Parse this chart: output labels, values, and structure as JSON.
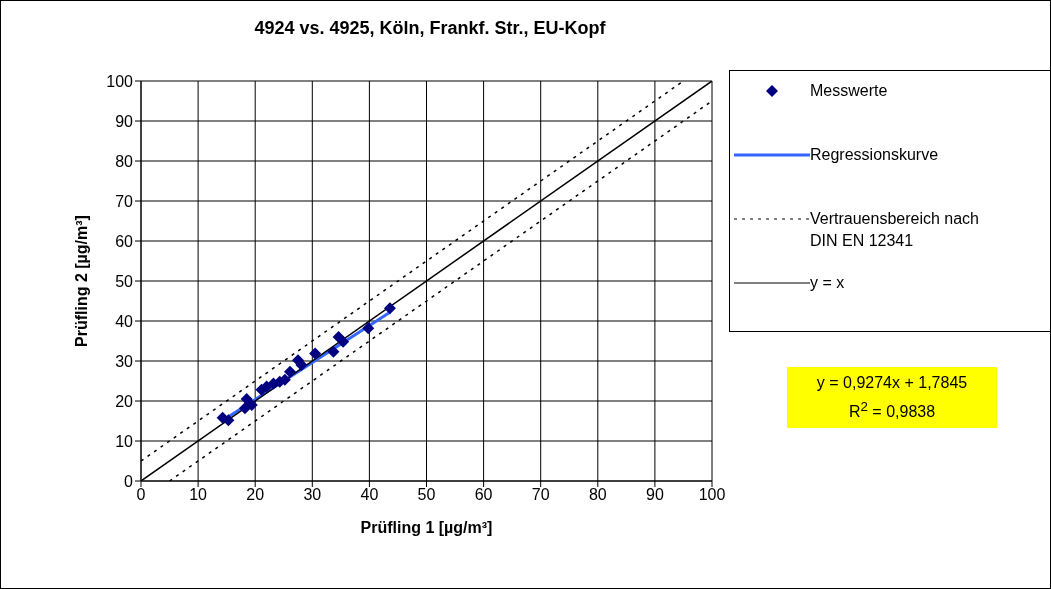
{
  "chart_data": {
    "type": "scatter",
    "title": "4924 vs. 4925, Köln, Frankf. Str., EU-Kopf",
    "xlabel": "Prüfling 1 [µg/m³]",
    "ylabel": "Prüfling 2 [µg/m³]",
    "xlim": [
      0,
      100
    ],
    "ylim": [
      0,
      100
    ],
    "xticks": [
      0,
      10,
      20,
      30,
      40,
      50,
      60,
      70,
      80,
      90,
      100
    ],
    "yticks": [
      0,
      10,
      20,
      30,
      40,
      50,
      60,
      70,
      80,
      90,
      100
    ],
    "grid": true,
    "legend": "right",
    "annotations": [
      "y = 0,9274x + 1,7845",
      "R$^{2}$ = 0,9838"
    ],
    "series": [
      {
        "name": "Messwerte",
        "marker": "diamond",
        "color": "#000080",
        "x": [
          14.3,
          15.3,
          18.5,
          19.4,
          18.2,
          21.1,
          22,
          23.2,
          24.3,
          25.2,
          26.1,
          27.5,
          28.1,
          30.5,
          33.7,
          34.6,
          35.4,
          39.8,
          43.6
        ],
        "values": [
          15.8,
          15.2,
          20.5,
          19,
          18.2,
          22.8,
          23.6,
          24.4,
          24.8,
          25.3,
          27.3,
          30.2,
          29,
          31.9,
          32.3,
          36,
          34.8,
          38.2,
          43.2
        ]
      },
      {
        "name": "Regressionskurve",
        "type": "line",
        "marker": "none",
        "line_style": "solid",
        "color": "#3366ff",
        "x": [
          14.3,
          43.6
        ],
        "values": [
          15.1,
          42.2
        ]
      },
      {
        "name": "Vertrauensbereich nach DIN EN 12341",
        "type": "line",
        "marker": "none",
        "line_style": "dotted",
        "color": "#000000",
        "x": [
          0,
          95
        ],
        "values": [
          5,
          100
        ]
      },
      {
        "type": "line",
        "marker": "none",
        "line_style": "dotted",
        "color": "#000000",
        "x": [
          5,
          100
        ],
        "values": [
          0,
          95
        ]
      },
      {
        "name": "y = x",
        "type": "line",
        "marker": "none",
        "line_style": "solid",
        "color": "#000000",
        "x": [
          0,
          100
        ],
        "values": [
          0,
          100
        ]
      }
    ]
  }
}
